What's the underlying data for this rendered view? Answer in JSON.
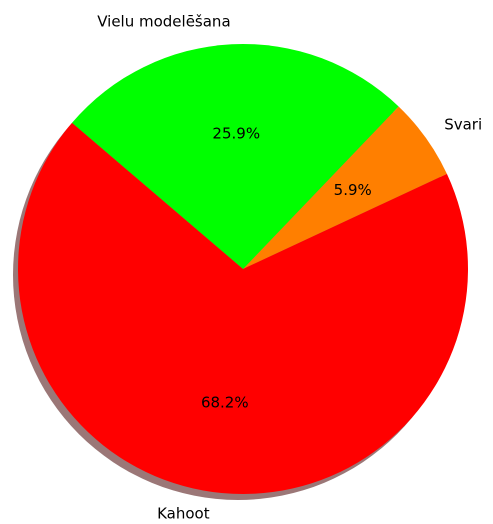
{
  "chart_data": {
    "type": "pie",
    "categories": [
      "Svari",
      "Vielu modelēšana",
      "Kahoot"
    ],
    "values": [
      5.9,
      25.9,
      68.2
    ],
    "value_labels": [
      "5.9%",
      "25.9%",
      "68.2%"
    ],
    "colors": [
      "#ff7f00",
      "#00ff00",
      "#ff0000"
    ],
    "shadow": true
  }
}
